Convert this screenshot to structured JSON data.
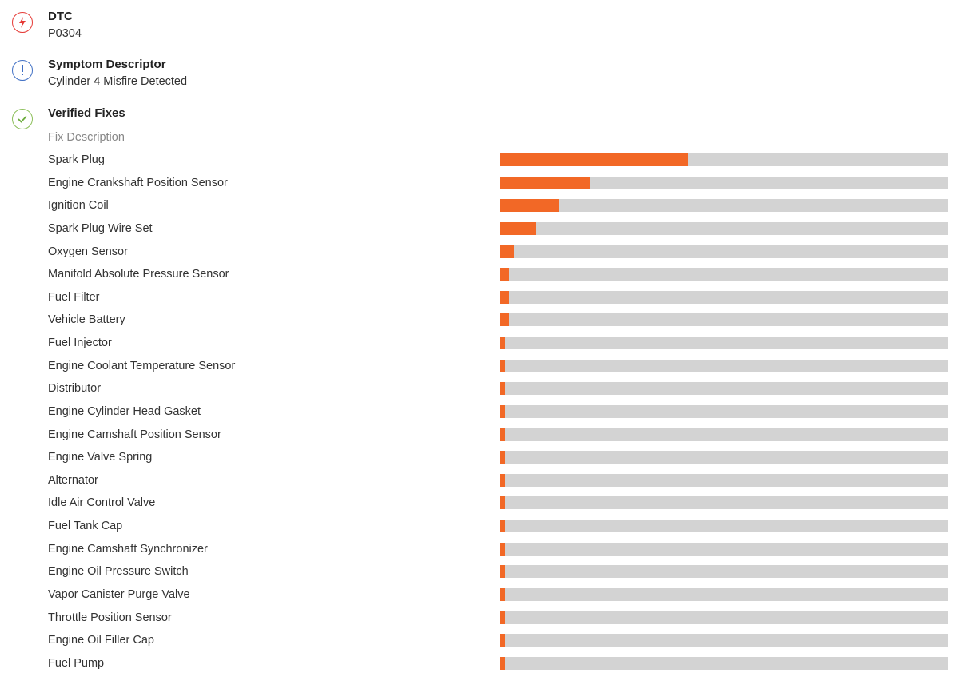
{
  "dtc": {
    "title": "DTC",
    "value": "P0304",
    "icon": "lightning-icon",
    "color": "#e53935"
  },
  "symptom": {
    "title": "Symptom Descriptor",
    "value": "Cylinder 4 Misfire Detected",
    "icon": "exclamation-icon",
    "color": "#3f6fc4"
  },
  "fixes": {
    "title": "Verified Fixes",
    "icon": "check-icon",
    "color": "#6aab3a",
    "column_header": "Fix Description",
    "bar_color": "#f26826",
    "track_color": "#d3d3d3",
    "items": [
      {
        "label": "Spark Plug",
        "percent": 42
      },
      {
        "label": "Engine Crankshaft Position Sensor",
        "percent": 20
      },
      {
        "label": "Ignition Coil",
        "percent": 13
      },
      {
        "label": "Spark Plug Wire Set",
        "percent": 8
      },
      {
        "label": "Oxygen Sensor",
        "percent": 3
      },
      {
        "label": "Manifold Absolute Pressure Sensor",
        "percent": 2
      },
      {
        "label": "Fuel Filter",
        "percent": 2
      },
      {
        "label": "Vehicle Battery",
        "percent": 2
      },
      {
        "label": "Fuel Injector",
        "percent": 1
      },
      {
        "label": "Engine Coolant Temperature Sensor",
        "percent": 1
      },
      {
        "label": "Distributor",
        "percent": 1
      },
      {
        "label": "Engine Cylinder Head Gasket",
        "percent": 1
      },
      {
        "label": "Engine Camshaft Position Sensor",
        "percent": 1
      },
      {
        "label": "Engine Valve Spring",
        "percent": 1
      },
      {
        "label": "Alternator",
        "percent": 1
      },
      {
        "label": "Idle Air Control Valve",
        "percent": 1
      },
      {
        "label": "Fuel Tank Cap",
        "percent": 1
      },
      {
        "label": "Engine Camshaft Synchronizer",
        "percent": 1
      },
      {
        "label": "Engine Oil Pressure Switch",
        "percent": 1
      },
      {
        "label": "Vapor Canister Purge Valve",
        "percent": 1
      },
      {
        "label": "Throttle Position Sensor",
        "percent": 1
      },
      {
        "label": "Engine Oil Filler Cap",
        "percent": 1
      },
      {
        "label": "Fuel Pump",
        "percent": 1
      }
    ]
  }
}
